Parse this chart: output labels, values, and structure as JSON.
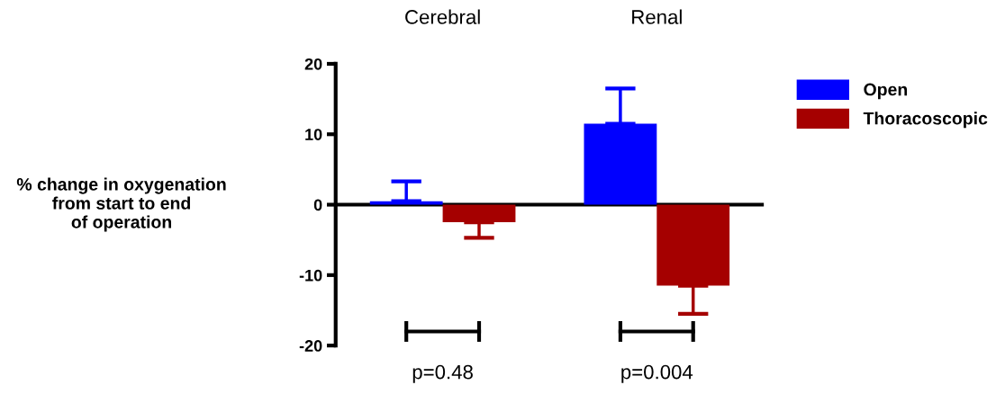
{
  "chart_data": {
    "type": "bar",
    "categories": [
      "Cerebral",
      "Renal"
    ],
    "ylabel": "% change in oxygenation\nfrom start to end\nof operation",
    "series": [
      {
        "name": "Open",
        "color": "#0000ff",
        "values": [
          0.5,
          11.5
        ],
        "errors": [
          [
            0.5,
            3.3
          ],
          [
            11.5,
            16.5
          ]
        ]
      },
      {
        "name": "Thoracoscopic",
        "color": "#a50000",
        "values": [
          -2.5,
          -11.5
        ],
        "errors": [
          [
            -4.7,
            -2.5
          ],
          [
            -15.5,
            -11.5
          ]
        ]
      }
    ],
    "ylim": [
      -20,
      20
    ],
    "yticks": [
      -20,
      -10,
      0,
      10,
      20
    ],
    "annotations": [
      "p=0.48",
      "p=0.004"
    ],
    "ref_lines": [
      {
        "axis": "y",
        "value": 0,
        "color": "#000000"
      }
    ],
    "legend": "top right",
    "grid": false
  }
}
